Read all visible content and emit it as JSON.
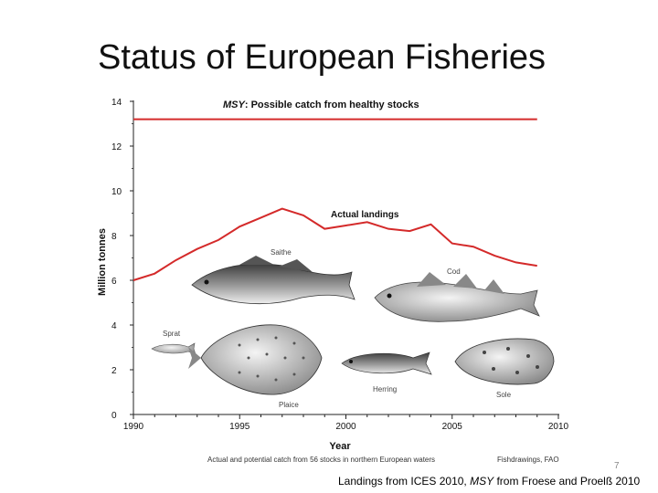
{
  "slide": {
    "title": "Status of European Fisheries",
    "page_number": "7",
    "footer_part1": "Landings from ICES 2010, ",
    "footer_msy": "MSY",
    "footer_part2": " from Froese and Proelß 2010"
  },
  "chart_data": {
    "type": "line",
    "ylabel": "Million tonnes",
    "xlabel": "Year",
    "caption": "Actual and potential catch from 56 stocks in northern European waters",
    "credit": "Fishdrawings, FAO",
    "ylim": [
      0,
      14
    ],
    "xlim": [
      1990,
      2010
    ],
    "y_ticks": [
      "0",
      "2",
      "4",
      "6",
      "8",
      "10",
      "12",
      "14"
    ],
    "x_ticks": [
      "1990",
      "1995",
      "2000",
      "2005",
      "2010"
    ],
    "series": [
      {
        "label_italic": "MSY",
        "label_rest": ": Possible catch from healthy stocks",
        "color": "#d42a2a",
        "x": [
          1990,
          2009
        ],
        "y": [
          13.2,
          13.2
        ]
      },
      {
        "label": "Actual landings",
        "color": "#d42a2a",
        "x": [
          1990,
          1991,
          1992,
          1993,
          1994,
          1995,
          1996,
          1997,
          1998,
          1999,
          2000,
          2001,
          2002,
          2003,
          2004,
          2005,
          2006,
          2007,
          2008,
          2009
        ],
        "y": [
          6.0,
          6.3,
          6.9,
          7.4,
          7.8,
          8.4,
          8.8,
          9.2,
          8.9,
          8.3,
          8.45,
          8.6,
          8.3,
          8.2,
          8.5,
          7.65,
          7.5,
          7.1,
          6.8,
          6.65
        ]
      }
    ],
    "fish_labels": [
      "Saithe",
      "Cod",
      "Sprat",
      "Herring",
      "Plaice",
      "Sole"
    ]
  }
}
